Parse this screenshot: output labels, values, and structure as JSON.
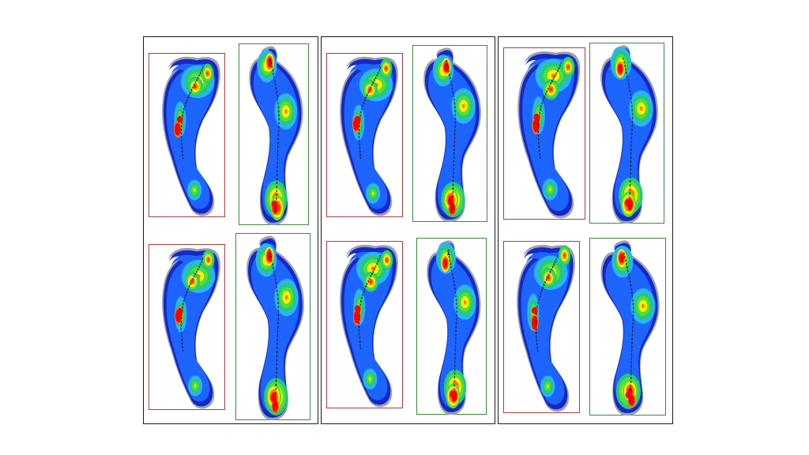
{
  "figure": {
    "panel_border_color": "#1a1a1a",
    "left_box_color": "#b03a3a",
    "right_box_color": "#3a8a3a",
    "palette": [
      "#9aa0b0",
      "#1428c8",
      "#1e64ff",
      "#28b4ff",
      "#28c878",
      "#50e03c",
      "#fff000",
      "#ff7800",
      "#ff0000"
    ],
    "annotation": "1"
  },
  "panels": [
    {
      "label": "panel-1",
      "top_row": {
        "left": "left-foot-print",
        "right": "right-foot-print"
      },
      "bottom_row": {
        "left": "left-foot-print",
        "right": "right-foot-print"
      }
    },
    {
      "label": "panel-2",
      "top_row": {
        "left": "left-foot-print",
        "right": "right-foot-print"
      },
      "bottom_row": {
        "left": "left-foot-print",
        "right": "right-foot-print"
      }
    },
    {
      "label": "panel-3",
      "top_row": {
        "left": "left-foot-print",
        "right": "right-foot-print"
      },
      "bottom_row": {
        "left": "left-foot-print",
        "right": "right-foot-print"
      }
    }
  ]
}
